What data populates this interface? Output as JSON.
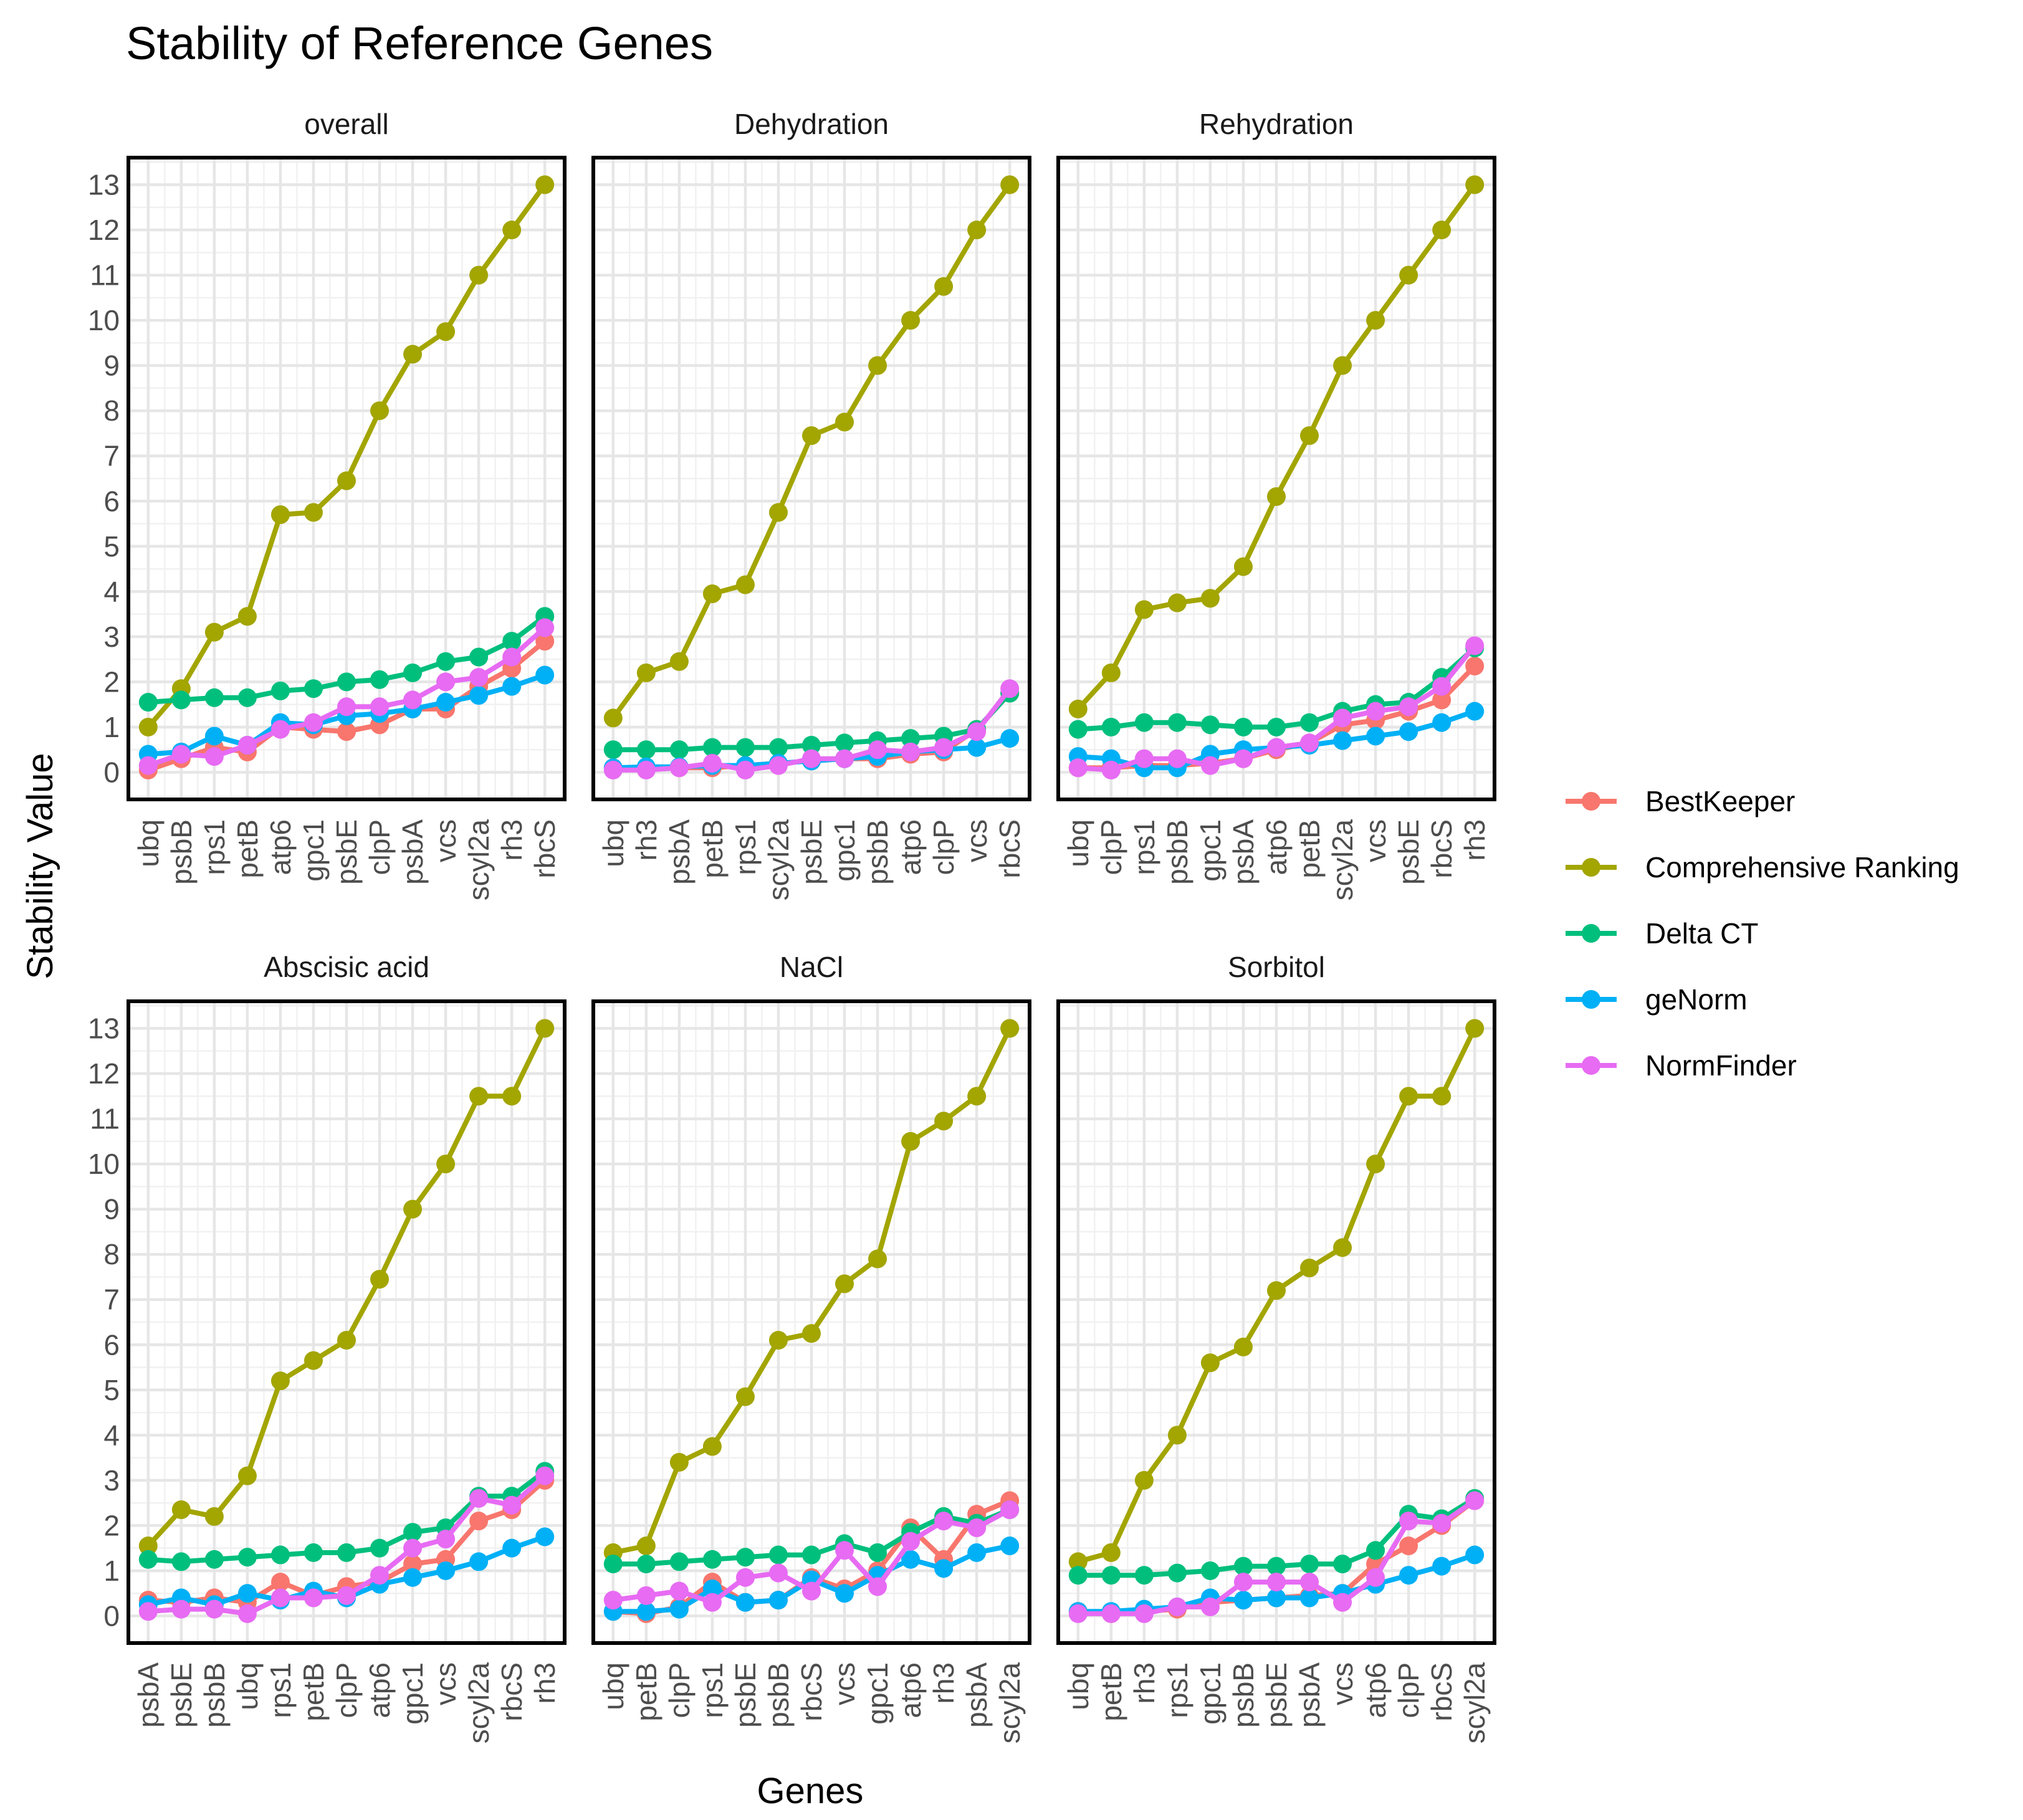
{
  "chart_data": {
    "type": "line",
    "title": "Stability of Reference Genes",
    "xlabel": "Genes",
    "ylabel": "Stability Value",
    "ylim": [
      -0.6,
      13.6
    ],
    "yticks": [
      "0",
      "1",
      "2",
      "3",
      "4",
      "5",
      "6",
      "7",
      "8",
      "9",
      "10",
      "11",
      "12",
      "13"
    ],
    "grid": true,
    "legend_position": "right",
    "series_names": [
      "BestKeeper",
      "Comprehensive Ranking",
      "Delta CT",
      "geNorm",
      "NormFinder"
    ],
    "colors": {
      "BestKeeper": "#F8766D",
      "Comprehensive Ranking": "#A3A500",
      "Delta CT": "#00BF7D",
      "geNorm": "#00B0F6",
      "NormFinder": "#E76BF3"
    },
    "panels": [
      {
        "name": "overall",
        "genes": [
          "ubq",
          "psbB",
          "rps1",
          "petB",
          "atp6",
          "gpc1",
          "psbE",
          "clpP",
          "psbA",
          "vcs",
          "scyl2a",
          "rh3",
          "rbcS"
        ],
        "series": {
          "BestKeeper": [
            0.05,
            0.3,
            0.55,
            0.45,
            1.0,
            0.95,
            0.9,
            1.05,
            1.4,
            1.4,
            1.9,
            2.3,
            2.9
          ],
          "Comprehensive Ranking": [
            1.0,
            1.85,
            3.1,
            3.45,
            5.7,
            5.75,
            6.45,
            8.0,
            9.25,
            9.75,
            11.0,
            12.0,
            13.0
          ],
          "Delta CT": [
            1.55,
            1.6,
            1.65,
            1.65,
            1.8,
            1.85,
            2.0,
            2.05,
            2.2,
            2.45,
            2.55,
            2.9,
            3.45
          ],
          "geNorm": [
            0.4,
            0.45,
            0.8,
            0.6,
            1.1,
            1.05,
            1.25,
            1.3,
            1.4,
            1.55,
            1.7,
            1.9,
            2.15
          ],
          "NormFinder": [
            0.15,
            0.4,
            0.35,
            0.6,
            0.95,
            1.1,
            1.45,
            1.45,
            1.6,
            2.0,
            2.1,
            2.55,
            3.2
          ]
        }
      },
      {
        "name": "Dehydration",
        "genes": [
          "ubq",
          "rh3",
          "psbA",
          "petB",
          "rps1",
          "scyl2a",
          "psbE",
          "gpc1",
          "psbB",
          "atp6",
          "clpP",
          "vcs",
          "rbcS"
        ],
        "series": {
          "BestKeeper": [
            0.1,
            0.1,
            0.1,
            0.1,
            0.15,
            0.2,
            0.25,
            0.3,
            0.3,
            0.4,
            0.45,
            0.95,
            1.75
          ],
          "Comprehensive Ranking": [
            1.2,
            2.2,
            2.45,
            3.95,
            4.15,
            5.75,
            7.45,
            7.75,
            9.0,
            10.0,
            10.75,
            12.0,
            13.0
          ],
          "Delta CT": [
            0.5,
            0.5,
            0.5,
            0.55,
            0.55,
            0.55,
            0.6,
            0.65,
            0.7,
            0.75,
            0.8,
            0.95,
            1.75
          ],
          "geNorm": [
            0.1,
            0.12,
            0.12,
            0.15,
            0.15,
            0.2,
            0.25,
            0.3,
            0.35,
            0.45,
            0.5,
            0.55,
            0.75
          ],
          "NormFinder": [
            0.05,
            0.05,
            0.1,
            0.2,
            0.05,
            0.15,
            0.3,
            0.3,
            0.5,
            0.45,
            0.55,
            0.9,
            1.85
          ]
        }
      },
      {
        "name": "Rehydration",
        "genes": [
          "ubq",
          "clpP",
          "rps1",
          "psbB",
          "gpc1",
          "psbA",
          "atp6",
          "petB",
          "scyl2a",
          "vcs",
          "psbE",
          "rbcS",
          "rh3"
        ],
        "series": {
          "BestKeeper": [
            0.1,
            0.1,
            0.15,
            0.15,
            0.2,
            0.3,
            0.5,
            0.65,
            1.05,
            1.15,
            1.35,
            1.6,
            2.35
          ],
          "Comprehensive Ranking": [
            1.4,
            2.2,
            3.6,
            3.75,
            3.85,
            4.55,
            6.1,
            7.45,
            9.0,
            10.0,
            11.0,
            12.0,
            13.0
          ],
          "Delta CT": [
            0.95,
            1.0,
            1.1,
            1.1,
            1.05,
            1.0,
            1.0,
            1.1,
            1.35,
            1.5,
            1.55,
            2.1,
            2.75
          ],
          "geNorm": [
            0.35,
            0.3,
            0.1,
            0.1,
            0.4,
            0.5,
            0.55,
            0.6,
            0.7,
            0.8,
            0.9,
            1.1,
            1.35
          ],
          "NormFinder": [
            0.1,
            0.05,
            0.3,
            0.3,
            0.15,
            0.3,
            0.55,
            0.65,
            1.2,
            1.35,
            1.45,
            1.9,
            2.8
          ]
        }
      },
      {
        "name": "Abscisic acid",
        "genes": [
          "psbA",
          "psbE",
          "psbB",
          "ubq",
          "rps1",
          "petB",
          "clpP",
          "atp6",
          "gpc1",
          "vcs",
          "scyl2a",
          "rbcS",
          "rh3"
        ],
        "series": {
          "BestKeeper": [
            0.35,
            0.3,
            0.4,
            0.3,
            0.75,
            0.45,
            0.65,
            0.75,
            1.15,
            1.25,
            2.1,
            2.35,
            3.0
          ],
          "Comprehensive Ranking": [
            1.55,
            2.35,
            2.2,
            3.1,
            5.2,
            5.65,
            6.1,
            7.45,
            9.0,
            10.0,
            11.5,
            11.5,
            13.0
          ],
          "Delta CT": [
            1.25,
            1.2,
            1.25,
            1.3,
            1.35,
            1.4,
            1.4,
            1.5,
            1.85,
            1.95,
            2.65,
            2.65,
            3.2
          ],
          "geNorm": [
            0.25,
            0.4,
            0.25,
            0.5,
            0.35,
            0.55,
            0.4,
            0.7,
            0.85,
            1.0,
            1.2,
            1.5,
            1.75
          ],
          "NormFinder": [
            0.1,
            0.15,
            0.15,
            0.05,
            0.4,
            0.4,
            0.45,
            0.9,
            1.5,
            1.7,
            2.6,
            2.45,
            3.1
          ]
        }
      },
      {
        "name": "NaCl",
        "genes": [
          "ubq",
          "petB",
          "clpP",
          "rps1",
          "psbE",
          "psbB",
          "rbcS",
          "vcs",
          "gpc1",
          "atp6",
          "rh3",
          "psbA",
          "scyl2a"
        ],
        "series": {
          "BestKeeper": [
            0.1,
            0.05,
            0.2,
            0.75,
            0.3,
            0.35,
            0.85,
            0.6,
            1.0,
            1.95,
            1.25,
            2.25,
            2.55
          ],
          "Comprehensive Ranking": [
            1.4,
            1.55,
            3.4,
            3.75,
            4.85,
            6.1,
            6.25,
            7.35,
            7.9,
            10.5,
            10.95,
            11.5,
            13.0
          ],
          "Delta CT": [
            1.15,
            1.15,
            1.2,
            1.25,
            1.3,
            1.35,
            1.35,
            1.6,
            1.4,
            1.85,
            2.2,
            2.05,
            2.35
          ],
          "geNorm": [
            0.1,
            0.1,
            0.15,
            0.6,
            0.3,
            0.35,
            0.8,
            0.5,
            0.9,
            1.25,
            1.05,
            1.4,
            1.55
          ],
          "NormFinder": [
            0.35,
            0.45,
            0.55,
            0.3,
            0.85,
            0.95,
            0.55,
            1.45,
            0.65,
            1.65,
            2.1,
            1.95,
            2.35
          ]
        }
      },
      {
        "name": "Sorbitol",
        "genes": [
          "ubq",
          "petB",
          "rh3",
          "rps1",
          "gpc1",
          "psbB",
          "psbE",
          "psbA",
          "vcs",
          "atp6",
          "clpP",
          "rbcS",
          "scyl2a"
        ],
        "series": {
          "BestKeeper": [
            0.1,
            0.05,
            0.1,
            0.15,
            0.3,
            0.35,
            0.4,
            0.45,
            0.5,
            1.15,
            1.55,
            2.0,
            2.55
          ],
          "Comprehensive Ranking": [
            1.2,
            1.4,
            3.0,
            4.0,
            5.6,
            5.95,
            7.2,
            7.7,
            8.15,
            10.0,
            11.5,
            11.5,
            13.0
          ],
          "Delta CT": [
            0.9,
            0.9,
            0.9,
            0.95,
            1.0,
            1.1,
            1.1,
            1.15,
            1.15,
            1.45,
            2.25,
            2.15,
            2.6
          ],
          "geNorm": [
            0.1,
            0.1,
            0.15,
            0.2,
            0.4,
            0.35,
            0.4,
            0.4,
            0.5,
            0.7,
            0.9,
            1.1,
            1.35
          ],
          "NormFinder": [
            0.05,
            0.05,
            0.05,
            0.2,
            0.2,
            0.75,
            0.75,
            0.75,
            0.3,
            0.85,
            2.1,
            2.05,
            2.55
          ]
        }
      }
    ]
  }
}
